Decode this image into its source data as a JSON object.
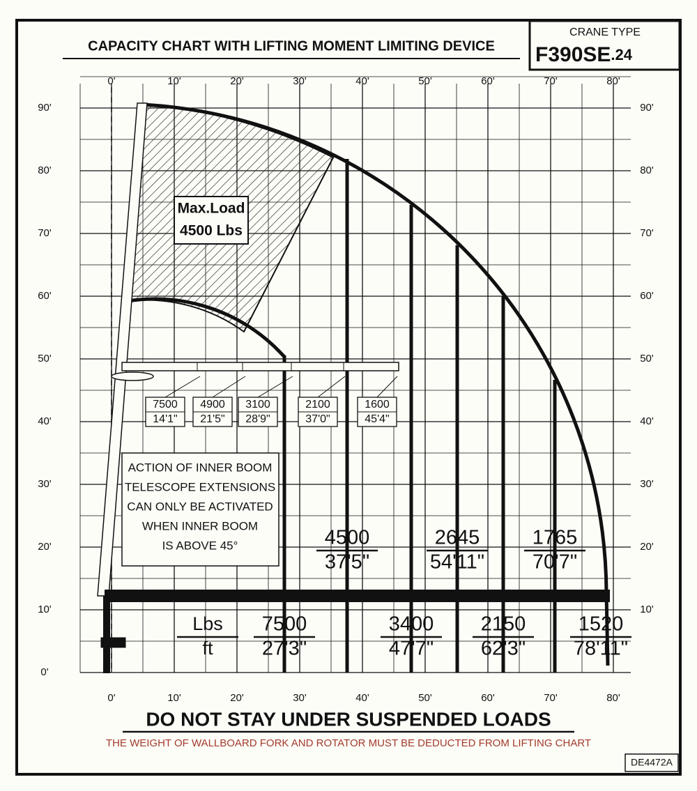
{
  "header": {
    "title": "CAPACITY CHART WITH LIFTING MOMENT LIMITING DEVICE",
    "crane_type_label": "CRANE TYPE",
    "model": "F390SE",
    "model_suffix": ".24"
  },
  "axes": {
    "top": [
      "0'",
      "10'",
      "20'",
      "30'",
      "40'",
      "50'",
      "60'",
      "70'",
      "80'"
    ],
    "bottom": [
      "0'",
      "10'",
      "20'",
      "30'",
      "40'",
      "50'",
      "60'",
      "70'",
      "80'"
    ],
    "left": [
      "90'",
      "80'",
      "70'",
      "60'",
      "50'",
      "40'",
      "30'",
      "20'",
      "10'",
      "0'"
    ],
    "right": [
      "90'",
      "80'",
      "70'",
      "60'",
      "50'",
      "40'",
      "30'",
      "20'",
      "10'"
    ]
  },
  "max_load": {
    "lines": [
      "Max.Load",
      "4500 Lbs"
    ]
  },
  "extension_boxes": [
    {
      "load": "7500",
      "reach": "14'1\""
    },
    {
      "load": "4900",
      "reach": "21'5\""
    },
    {
      "load": "3100",
      "reach": "28'9\""
    },
    {
      "load": "2100",
      "reach": "37'0\""
    },
    {
      "load": "1600",
      "reach": "45'4\""
    }
  ],
  "note": {
    "lines": [
      "ACTION OF INNER BOOM",
      "TELESCOPE EXTENSIONS",
      "CAN ONLY BE ACTIVATED",
      "WHEN INNER BOOM",
      "IS ABOVE 45°"
    ]
  },
  "unit_label": {
    "load": "Lbs",
    "reach": "ft"
  },
  "upper_capacities": [
    {
      "load": "4500",
      "reach": "37'5\""
    },
    {
      "load": "2645",
      "reach": "54'11\""
    },
    {
      "load": "1765",
      "reach": "70'7\""
    }
  ],
  "lower_capacities": [
    {
      "load": "7500",
      "reach": "27'3\""
    },
    {
      "load": "3400",
      "reach": "47'7\""
    },
    {
      "load": "2150",
      "reach": "62'3\""
    },
    {
      "load": "1520",
      "reach": "78'11\""
    }
  ],
  "warning": "DO NOT STAY UNDER SUSPENDED LOADS",
  "deduction_note": "THE WEIGHT OF WALLBOARD FORK AND ROTATOR MUST BE DEDUCTED FROM LIFTING CHART",
  "code": "DE4472A"
}
